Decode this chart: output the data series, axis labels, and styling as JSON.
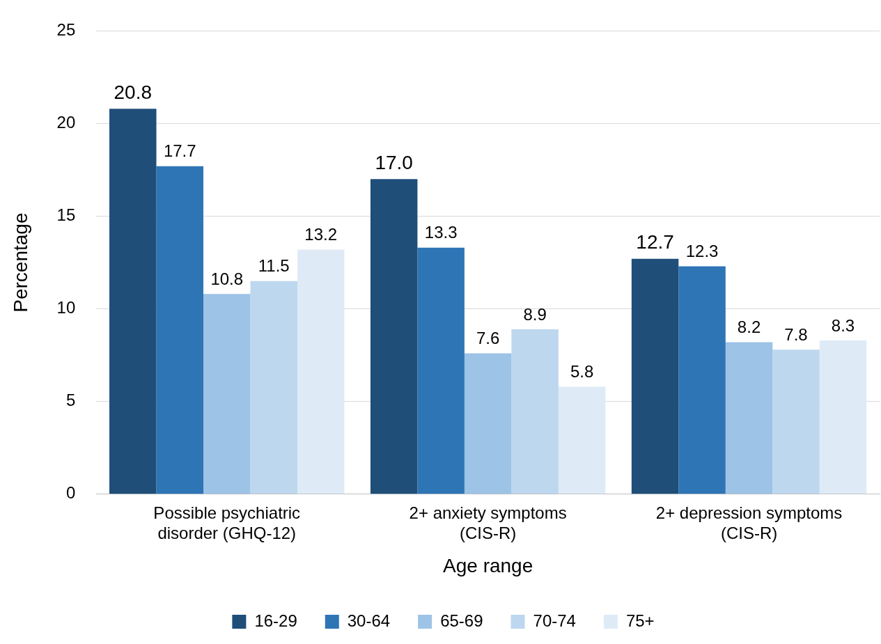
{
  "chart_data": {
    "type": "bar",
    "xlabel": "Age range",
    "ylabel": "Percentage",
    "categories": [
      "Possible psychiatric disorder (GHQ-12)",
      "2+ anxiety symptoms (CIS-R)",
      "2+ depression symptoms (CIS-R)"
    ],
    "series": [
      {
        "name": "16-29",
        "color": "#1f4e79",
        "values": [
          20.8,
          17.0,
          12.7
        ],
        "value_labels": [
          "20.8",
          "17.0",
          "12.7"
        ]
      },
      {
        "name": "30-64",
        "color": "#2e75b6",
        "values": [
          17.7,
          13.3,
          12.3
        ],
        "value_labels": [
          "17.7",
          "13.3",
          "12.3"
        ]
      },
      {
        "name": "65-69",
        "color": "#9dc3e6",
        "values": [
          10.8,
          7.6,
          8.2
        ],
        "value_labels": [
          "10.8",
          "7.6",
          "8.2"
        ]
      },
      {
        "name": "70-74",
        "color": "#bdd7ee",
        "values": [
          11.5,
          8.9,
          7.8
        ],
        "value_labels": [
          "11.5",
          "8.9",
          "7.8"
        ]
      },
      {
        "name": "75+",
        "color": "#deebf7",
        "values": [
          13.2,
          5.8,
          8.3
        ],
        "value_labels": [
          "13.2",
          "5.8",
          "8.3"
        ]
      }
    ],
    "ylim": [
      0,
      25
    ],
    "yticks": [
      0,
      5,
      10,
      15,
      20,
      25
    ],
    "grid": "y",
    "legend": "bottom"
  }
}
